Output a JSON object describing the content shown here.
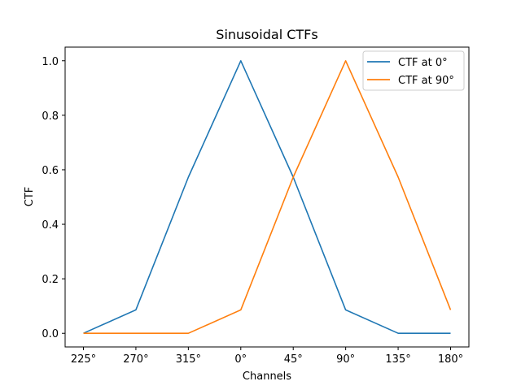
{
  "chart_data": {
    "type": "line",
    "title": "Sinusoidal CTFs",
    "xlabel": "Channels",
    "ylabel": "CTF",
    "categories": [
      "225°",
      "270°",
      "315°",
      "0°",
      "45°",
      "90°",
      "135°",
      "180°"
    ],
    "ylim": [
      -0.05,
      1.05
    ],
    "yticks": [
      "0.0",
      "0.2",
      "0.4",
      "0.6",
      "0.8",
      "1.0"
    ],
    "grid": false,
    "legend_position": "top-right",
    "series": [
      {
        "name": "CTF at 0°",
        "color": "#1f77b4",
        "values": [
          0.0,
          0.086,
          0.573,
          1.0,
          0.573,
          0.086,
          0.0,
          0.0
        ]
      },
      {
        "name": "CTF at 90°",
        "color": "#ff7f0e",
        "values": [
          0.0,
          0.0,
          0.0,
          0.086,
          0.573,
          1.0,
          0.573,
          0.086
        ]
      }
    ]
  }
}
